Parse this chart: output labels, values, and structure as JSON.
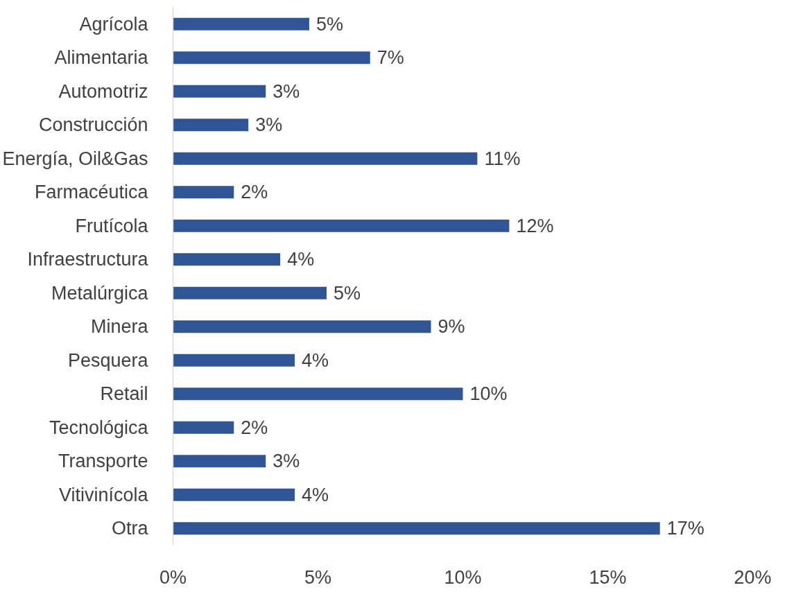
{
  "chart_data": {
    "type": "bar",
    "orientation": "horizontal",
    "categories": [
      "Agrícola",
      "Alimentaria",
      "Automotriz",
      "Construcción",
      "Energía, Oil&Gas",
      "Farmacéutica",
      "Frutícola",
      "Infraestructura",
      "Metalúrgica",
      "Minera",
      "Pesquera",
      "Retail",
      "Tecnológica",
      "Transporte",
      "Vitivinícola",
      "Otra"
    ],
    "values": [
      4.7,
      6.8,
      3.2,
      2.6,
      10.5,
      2.1,
      11.6,
      3.7,
      5.3,
      8.9,
      4.2,
      10.0,
      2.1,
      3.2,
      4.2,
      16.8
    ],
    "value_labels": [
      "5%",
      "7%",
      "3%",
      "3%",
      "11%",
      "2%",
      "12%",
      "4%",
      "5%",
      "9%",
      "4%",
      "10%",
      "2%",
      "3%",
      "4%",
      "17%"
    ],
    "color": "#2f5597",
    "xlim": [
      0,
      20
    ],
    "xticks": [
      {
        "value": 0,
        "label": "0%"
      },
      {
        "value": 5,
        "label": "5%"
      },
      {
        "value": 10,
        "label": "10%"
      },
      {
        "value": 15,
        "label": "15%"
      },
      {
        "value": 20,
        "label": "20%"
      }
    ],
    "grid": false
  }
}
